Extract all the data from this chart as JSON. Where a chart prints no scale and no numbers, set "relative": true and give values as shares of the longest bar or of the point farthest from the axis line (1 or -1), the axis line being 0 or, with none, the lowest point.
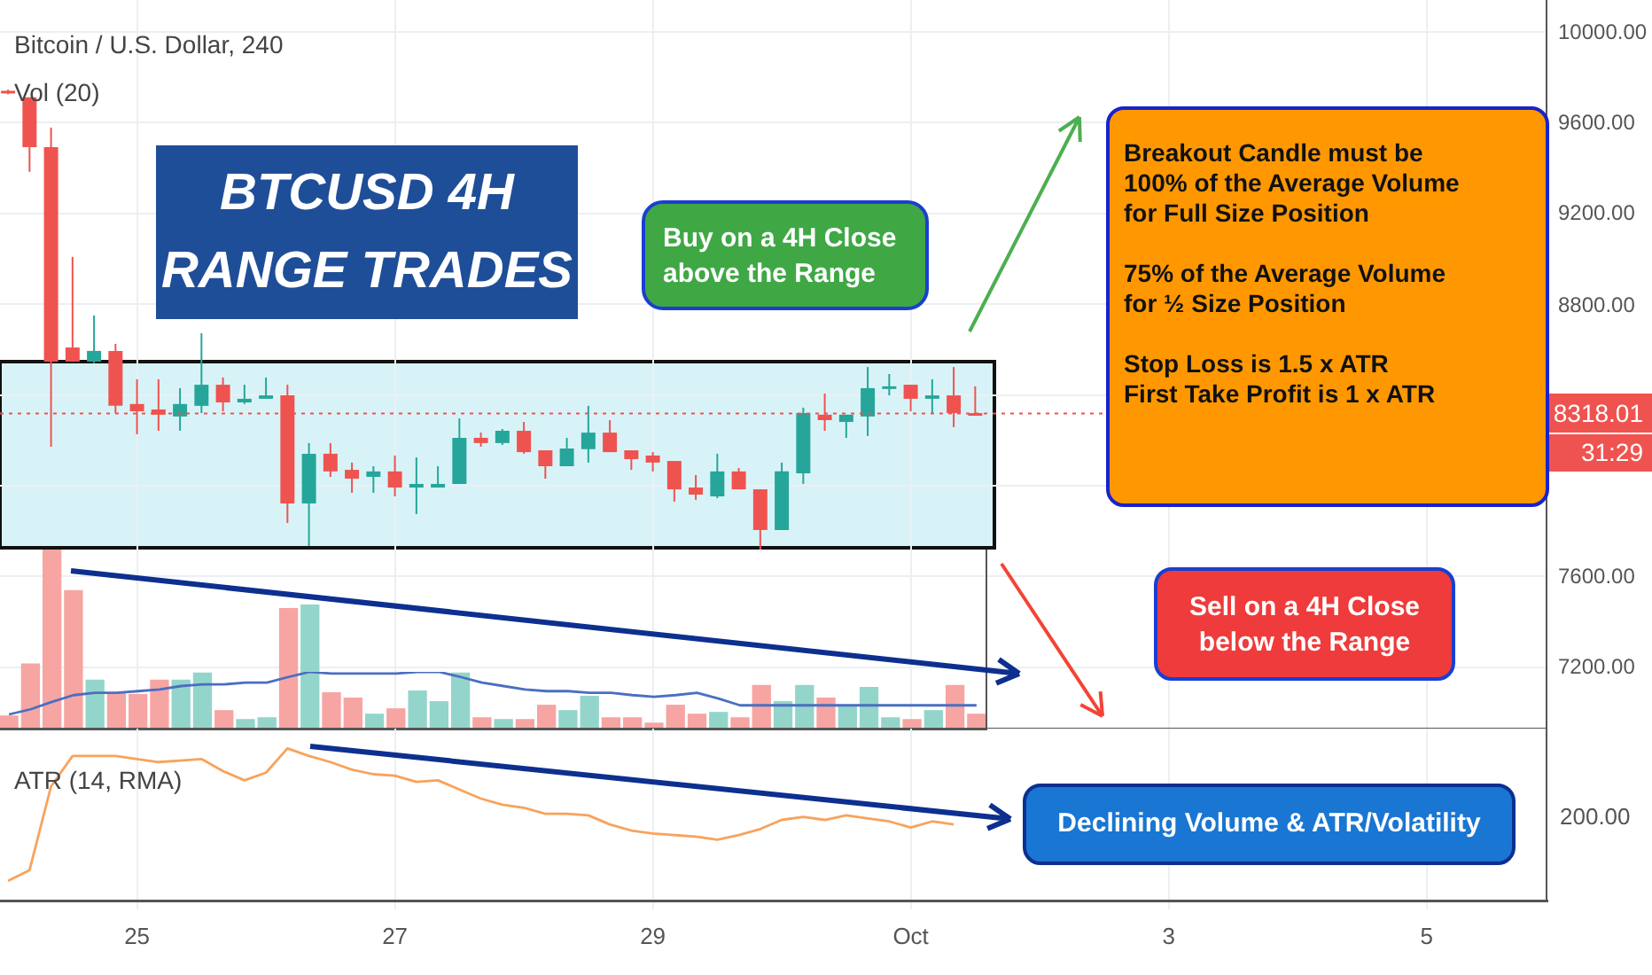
{
  "chart_data": [
    {
      "type": "candlestick",
      "title": "Bitcoin / U.S. Dollar, 240",
      "x": [
        "--09-24T00:00",
        "--09-24T04:00",
        "--09-24T08:00",
        "--09-24T12:00",
        "--09-24T16:00",
        "--09-24T20:00",
        "--09-25T00:00",
        "--09-25T04:00",
        "--09-25T08:00",
        "--09-25T12:00",
        "--09-25T16:00",
        "--09-25T20:00",
        "--09-26T00:00",
        "--09-26T04:00",
        "--09-26T08:00",
        "--09-26T12:00",
        "--09-26T16:00",
        "--09-26T20:00",
        "--09-27T00:00",
        "--09-27T04:00",
        "--09-27T08:00",
        "--09-27T12:00",
        "--09-27T16:00",
        "--09-27T20:00",
        "--09-28T00:00",
        "--09-28T04:00",
        "--09-28T08:00",
        "--09-28T12:00",
        "--09-28T16:00",
        "--09-28T20:00",
        "--09-29T00:00",
        "--09-29T04:00",
        "--09-29T08:00",
        "--09-29T12:00",
        "--09-29T16:00",
        "--09-29T20:00",
        "--09-30T00:00",
        "--09-30T04:00",
        "--09-30T08:00",
        "--09-30T12:00",
        "--09-30T16:00",
        "--09-30T20:00",
        "--10-01T00:00",
        "--10-01T04:00",
        "--10-01T08:00",
        "--10-01T12:00"
      ],
      "ohlc": [
        [
          9740,
          9745,
          9725,
          9730
        ],
        [
          9711,
          9711,
          9383,
          9492
        ],
        [
          9492,
          9578,
          8172,
          8547
        ],
        [
          8609,
          9008,
          8547,
          8547
        ],
        [
          8547,
          8750,
          8540,
          8594
        ],
        [
          8594,
          8625,
          8320,
          8352
        ],
        [
          8360,
          8469,
          8227,
          8328
        ],
        [
          8336,
          8469,
          8242,
          8313
        ],
        [
          8305,
          8430,
          8242,
          8360
        ],
        [
          8352,
          8672,
          8320,
          8445
        ],
        [
          8445,
          8477,
          8328,
          8367
        ],
        [
          8367,
          8445,
          8360,
          8383
        ],
        [
          8383,
          8477,
          8383,
          8398
        ],
        [
          8398,
          8445,
          7836,
          7922
        ],
        [
          7922,
          8188,
          7734,
          8141
        ],
        [
          8141,
          8188,
          8039,
          8063
        ],
        [
          8070,
          8102,
          7969,
          8031
        ],
        [
          8039,
          8086,
          7969,
          8063
        ],
        [
          8063,
          8133,
          7953,
          7992
        ],
        [
          7992,
          8125,
          7875,
          8008
        ],
        [
          7992,
          8086,
          7992,
          8008
        ],
        [
          8008,
          8297,
          8008,
          8211
        ],
        [
          8211,
          8234,
          8172,
          8188
        ],
        [
          8188,
          8250,
          8180,
          8242
        ],
        [
          8242,
          8281,
          8141,
          8148
        ],
        [
          8156,
          8156,
          8031,
          8086
        ],
        [
          8086,
          8211,
          8086,
          8164
        ],
        [
          8161,
          8352,
          8102,
          8234
        ],
        [
          8234,
          8289,
          8148,
          8148
        ],
        [
          8156,
          8156,
          8070,
          8117
        ],
        [
          8133,
          8148,
          8063,
          8102
        ],
        [
          8109,
          8109,
          7930,
          7984
        ],
        [
          7992,
          8047,
          7938,
          7961
        ],
        [
          7953,
          8141,
          7945,
          8063
        ],
        [
          8063,
          8078,
          7984,
          7984
        ],
        [
          7984,
          7984,
          7719,
          7805
        ],
        [
          7805,
          8102,
          7805,
          8063
        ],
        [
          8055,
          8344,
          8008,
          8320
        ],
        [
          8313,
          8406,
          8242,
          8289
        ],
        [
          8281,
          8313,
          8211,
          8313
        ],
        [
          8305,
          8523,
          8219,
          8430
        ],
        [
          8430,
          8492,
          8398,
          8438
        ],
        [
          8445,
          8445,
          8328,
          8383
        ],
        [
          8383,
          8469,
          8320,
          8398
        ],
        [
          8398,
          8523,
          8258,
          8320
        ],
        [
          8320,
          8438,
          8310,
          8318.01
        ]
      ],
      "colors": [
        "#ef5350",
        "#ef5350",
        "#ef5350",
        "#ef5350",
        "#26a69a",
        "#ef5350",
        "#ef5350",
        "#ef5350",
        "#26a69a",
        "#26a69a",
        "#ef5350",
        "#26a69a",
        "#26a69a",
        "#ef5350",
        "#26a69a",
        "#ef5350",
        "#ef5350",
        "#26a69a",
        "#ef5350",
        "#26a69a",
        "#26a69a",
        "#26a69a",
        "#ef5350",
        "#26a69a",
        "#ef5350",
        "#ef5350",
        "#26a69a",
        "#26a69a",
        "#ef5350",
        "#ef5350",
        "#ef5350",
        "#ef5350",
        "#ef5350",
        "#26a69a",
        "#ef5350",
        "#ef5350",
        "#26a69a",
        "#26a69a",
        "#ef5350",
        "#26a69a",
        "#26a69a",
        "#26a69a",
        "#ef5350",
        "#26a69a",
        "#ef5350",
        "#ef5350"
      ],
      "xlim": [
        "--09-23T22:30",
        "--10-05T22:30"
      ],
      "xticks": [
        {
          "value": "--09-25",
          "label": null
        },
        {
          "value": "--09-27",
          "label": null
        },
        {
          "value": "--09-29",
          "label": null
        },
        {
          "value": "--10-01",
          "label": null
        },
        {
          "value": "--10-03",
          "label": null
        },
        {
          "value": "--10-05",
          "label": null
        }
      ],
      "ylim": [
        6930,
        10140
      ],
      "yticks": [
        {
          "value": 7200,
          "label": "7200.00"
        },
        {
          "value": 7600,
          "label": "7600.00"
        },
        {
          "value": 8000,
          "label": null
        },
        {
          "value": 8400,
          "label": null
        },
        {
          "value": 8800,
          "label": "8800.00"
        },
        {
          "value": 9200,
          "label": "9200.00"
        },
        {
          "value": 9600,
          "label": "9600.00"
        },
        {
          "value": 10000,
          "label": "10000.00"
        }
      ],
      "tick_labels": "y",
      "grid": true,
      "ref_lines": [
        {
          "axis": "y",
          "value": 8318.01,
          "label": "8318.01",
          "color": "#ef5350",
          "line_style": "dotted"
        }
      ],
      "bands": [
        {
          "axis": "y",
          "from": 7719,
          "to": 8555,
          "color": "#d8f3f8"
        }
      ],
      "annotations": [
        "BTCUSD 4H\nRANGE TRADES",
        "Buy on a 4H Close\nabove the Range",
        "Breakout Candle must be\n100% of the Average Volume\nfor Full Size Position\n\n75% of the Average Volume\nfor ½ Size Position\n\nStop Loss is 1.5 x ATR\nFirst Take Profit is 1 x ATR",
        "Sell on a 4H Close\nbelow the Range",
        "31:29"
      ]
    },
    {
      "type": "bar",
      "title": "Vol (20)",
      "relative": true,
      "tick_labels": false,
      "categories": [
        null,
        null,
        null,
        null,
        null,
        null,
        null,
        null,
        null,
        null,
        null,
        null,
        null,
        null,
        null,
        null,
        null,
        null,
        null,
        null,
        null,
        null,
        null,
        null,
        null,
        null,
        null,
        null,
        null,
        null,
        null,
        null,
        null,
        null,
        null,
        null,
        null,
        null,
        null,
        null,
        null,
        null,
        null,
        null,
        null,
        null
      ],
      "values": [
        0.07,
        0.36,
        1,
        0.77,
        0.27,
        0.2,
        0.19,
        0.27,
        0.27,
        0.31,
        0.1,
        0.05,
        0.06,
        0.67,
        0.69,
        0.2,
        0.17,
        0.08,
        0.11,
        0.21,
        0.15,
        0.31,
        0.06,
        0.05,
        0.05,
        0.13,
        0.1,
        0.18,
        0.06,
        0.06,
        0.03,
        0.13,
        0.08,
        0.09,
        0.06,
        0.24,
        0.15,
        0.24,
        0.17,
        0.13,
        0.23,
        0.06,
        0.05,
        0.1,
        0.24,
        0.08
      ],
      "colors": [
        "#f6a5a3",
        "#f6a5a3",
        "#f6a5a3",
        "#f6a5a3",
        "#94d5cb",
        "#f6a5a3",
        "#f6a5a3",
        "#f6a5a3",
        "#94d5cb",
        "#94d5cb",
        "#f6a5a3",
        "#94d5cb",
        "#94d5cb",
        "#f6a5a3",
        "#94d5cb",
        "#f6a5a3",
        "#f6a5a3",
        "#94d5cb",
        "#f6a5a3",
        "#94d5cb",
        "#94d5cb",
        "#94d5cb",
        "#f6a5a3",
        "#94d5cb",
        "#f6a5a3",
        "#f6a5a3",
        "#94d5cb",
        "#94d5cb",
        "#f6a5a3",
        "#f6a5a3",
        "#f6a5a3",
        "#f6a5a3",
        "#f6a5a3",
        "#94d5cb",
        "#f6a5a3",
        "#f6a5a3",
        "#94d5cb",
        "#94d5cb",
        "#f6a5a3",
        "#94d5cb",
        "#94d5cb",
        "#94d5cb",
        "#f6a5a3",
        "#94d5cb",
        "#f6a5a3",
        "#f6a5a3"
      ]
    },
    {
      "type": "line",
      "relative": true,
      "tick_labels": false,
      "categories": [
        null,
        null,
        null,
        null,
        null,
        null,
        null,
        null,
        null,
        null,
        null,
        null,
        null,
        null,
        null,
        null,
        null,
        null,
        null,
        null,
        null,
        null,
        null,
        null,
        null,
        null,
        null,
        null,
        null,
        null,
        null,
        null,
        null,
        null,
        null,
        null,
        null,
        null,
        null,
        null,
        null,
        null,
        null,
        null,
        null,
        null
      ],
      "series": [
        {
          "color": "#4a6fc1",
          "values": [
            0.25,
            0.34,
            0.47,
            0.59,
            0.63,
            0.63,
            0.66,
            0.69,
            0.75,
            0.78,
            0.78,
            0.81,
            0.81,
            0.91,
            1,
            0.97,
            0.97,
            0.97,
            0.97,
            1,
            1,
            0.91,
            0.81,
            0.75,
            0.69,
            0.66,
            0.66,
            0.63,
            0.63,
            0.59,
            0.56,
            0.59,
            0.63,
            0.53,
            0.41,
            0.41,
            0.41,
            0.41,
            0.41,
            0.41,
            0.41,
            0.41,
            0.41,
            0.41,
            0.41,
            0.41
          ]
        }
      ]
    },
    {
      "type": "line",
      "title": "ATR (14, RMA)",
      "relative": true,
      "tick_labels": "x",
      "grid": "x",
      "x": [
        "--09-24T00:00",
        "--09-24T04:00",
        "--09-24T08:00",
        "--09-24T12:00",
        "--09-24T16:00",
        "--09-24T20:00",
        "--09-25T00:00",
        "--09-25T04:00",
        "--09-25T08:00",
        "--09-25T12:00",
        "--09-25T16:00",
        "--09-25T20:00",
        "--09-26T00:00",
        "--09-26T04:00",
        "--09-26T08:00",
        "--09-26T12:00",
        "--09-26T16:00",
        "--09-26T20:00",
        "--09-27T00:00",
        "--09-27T04:00",
        "--09-27T08:00",
        "--09-27T12:00",
        "--09-27T16:00",
        "--09-27T20:00",
        "--09-28T00:00",
        "--09-28T04:00",
        "--09-28T08:00",
        "--09-28T12:00",
        "--09-28T16:00",
        "--09-28T20:00",
        "--09-29T00:00",
        "--09-29T04:00",
        "--09-29T08:00",
        "--09-29T12:00",
        "--09-29T16:00",
        "--09-29T20:00",
        "--09-30T00:00",
        "--09-30T04:00",
        "--09-30T08:00",
        "--09-30T12:00",
        "--09-30T16:00",
        "--09-30T20:00",
        "--10-01T00:00",
        "--10-01T04:00",
        "--10-01T08:00"
      ],
      "xlim": [
        "--09-23T22:30",
        "--10-05T22:30"
      ],
      "xticks": [
        {
          "value": "--09-25",
          "label": "25"
        },
        {
          "value": "--09-27",
          "label": "27"
        },
        {
          "value": "--09-29",
          "label": "29"
        },
        {
          "value": "--10-01",
          "label": "Oct"
        },
        {
          "value": "--10-03",
          "label": "3"
        },
        {
          "value": "--10-05",
          "label": "5"
        }
      ],
      "series": [
        {
          "color": "#f7a35c",
          "values": [
            0.13,
            0.2,
            0.75,
            0.95,
            0.95,
            0.95,
            0.93,
            0.91,
            0.92,
            0.93,
            0.85,
            0.79,
            0.84,
            1,
            0.95,
            0.91,
            0.86,
            0.83,
            0.82,
            0.78,
            0.79,
            0.73,
            0.67,
            0.63,
            0.61,
            0.57,
            0.57,
            0.56,
            0.5,
            0.46,
            0.44,
            0.43,
            0.42,
            0.4,
            0.43,
            0.47,
            0.53,
            0.55,
            0.53,
            0.56,
            0.54,
            0.52,
            0.48,
            0.52,
            0.5
          ]
        }
      ],
      "annotations": [
        "Declining Volume & ATR/Volatility",
        "200.00"
      ]
    }
  ]
}
